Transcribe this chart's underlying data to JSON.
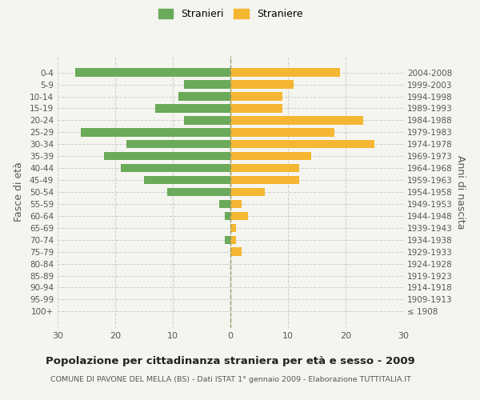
{
  "age_groups": [
    "100+",
    "95-99",
    "90-94",
    "85-89",
    "80-84",
    "75-79",
    "70-74",
    "65-69",
    "60-64",
    "55-59",
    "50-54",
    "45-49",
    "40-44",
    "35-39",
    "30-34",
    "25-29",
    "20-24",
    "15-19",
    "10-14",
    "5-9",
    "0-4"
  ],
  "birth_years": [
    "≤ 1908",
    "1909-1913",
    "1914-1918",
    "1919-1923",
    "1924-1928",
    "1929-1933",
    "1934-1938",
    "1939-1943",
    "1944-1948",
    "1949-1953",
    "1954-1958",
    "1959-1963",
    "1964-1968",
    "1969-1973",
    "1974-1978",
    "1979-1983",
    "1984-1988",
    "1989-1993",
    "1994-1998",
    "1999-2003",
    "2004-2008"
  ],
  "males": [
    0,
    0,
    0,
    0,
    0,
    0,
    1,
    0,
    1,
    2,
    11,
    15,
    19,
    22,
    18,
    26,
    8,
    13,
    9,
    8,
    27
  ],
  "females": [
    0,
    0,
    0,
    0,
    0,
    2,
    1,
    1,
    3,
    2,
    6,
    12,
    12,
    14,
    25,
    18,
    23,
    9,
    9,
    11,
    19
  ],
  "male_color": "#6aaa5a",
  "female_color": "#f5b731",
  "bg_color": "#f5f5f0",
  "grid_color": "#cccccc",
  "zero_line_color": "#999966",
  "title": "Popolazione per cittadinanza straniera per età e sesso - 2009",
  "subtitle": "COMUNE DI PAVONE DEL MELLA (BS) - Dati ISTAT 1° gennaio 2009 - Elaborazione TUTTITALIA.IT",
  "ylabel_left": "Fasce di età",
  "ylabel_right": "Anni di nascita",
  "legend_male": "Stranieri",
  "legend_female": "Straniere",
  "xlim": 30
}
